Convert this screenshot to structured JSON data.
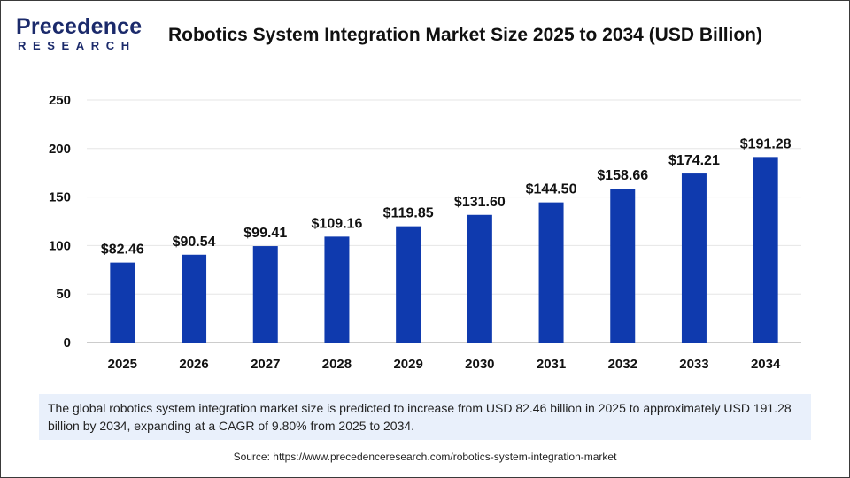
{
  "header": {
    "logo_word": "Precedence",
    "logo_sub": "RESEARCH",
    "title": "Robotics System Integration Market Size 2025 to 2034 (USD Billion)"
  },
  "colors": {
    "bar": "#0f3aae",
    "grid": "#e6e6e6",
    "axis": "#999999",
    "text": "#111111",
    "caption_bg": "#e9f0fb",
    "brand": "#1b2a6b"
  },
  "chart_data": {
    "type": "bar",
    "title": "Robotics System Integration Market Size 2025 to 2034 (USD Billion)",
    "xlabel": "",
    "ylabel": "",
    "categories": [
      "2025",
      "2026",
      "2027",
      "2028",
      "2029",
      "2030",
      "2031",
      "2032",
      "2033",
      "2034"
    ],
    "values": [
      82.46,
      90.54,
      99.41,
      109.16,
      119.85,
      131.6,
      144.5,
      158.66,
      174.21,
      191.28
    ],
    "data_labels": [
      "$82.46",
      "$90.54",
      "$99.41",
      "$109.16",
      "$119.85",
      "$131.60",
      "$144.50",
      "$158.66",
      "$174.21",
      "$191.28"
    ],
    "yticks": [
      0,
      50,
      100,
      150,
      200,
      250
    ],
    "ylim": [
      0,
      250
    ],
    "grid": true,
    "legend": "none"
  },
  "caption": "The global robotics system integration market size is predicted to increase from USD 82.46 billion in 2025 to approximately USD 191.28 billion by 2034, expanding at a CAGR of 9.80% from 2025 to 2034.",
  "source": "Source: https://www.precedenceresearch.com/robotics-system-integration-market"
}
